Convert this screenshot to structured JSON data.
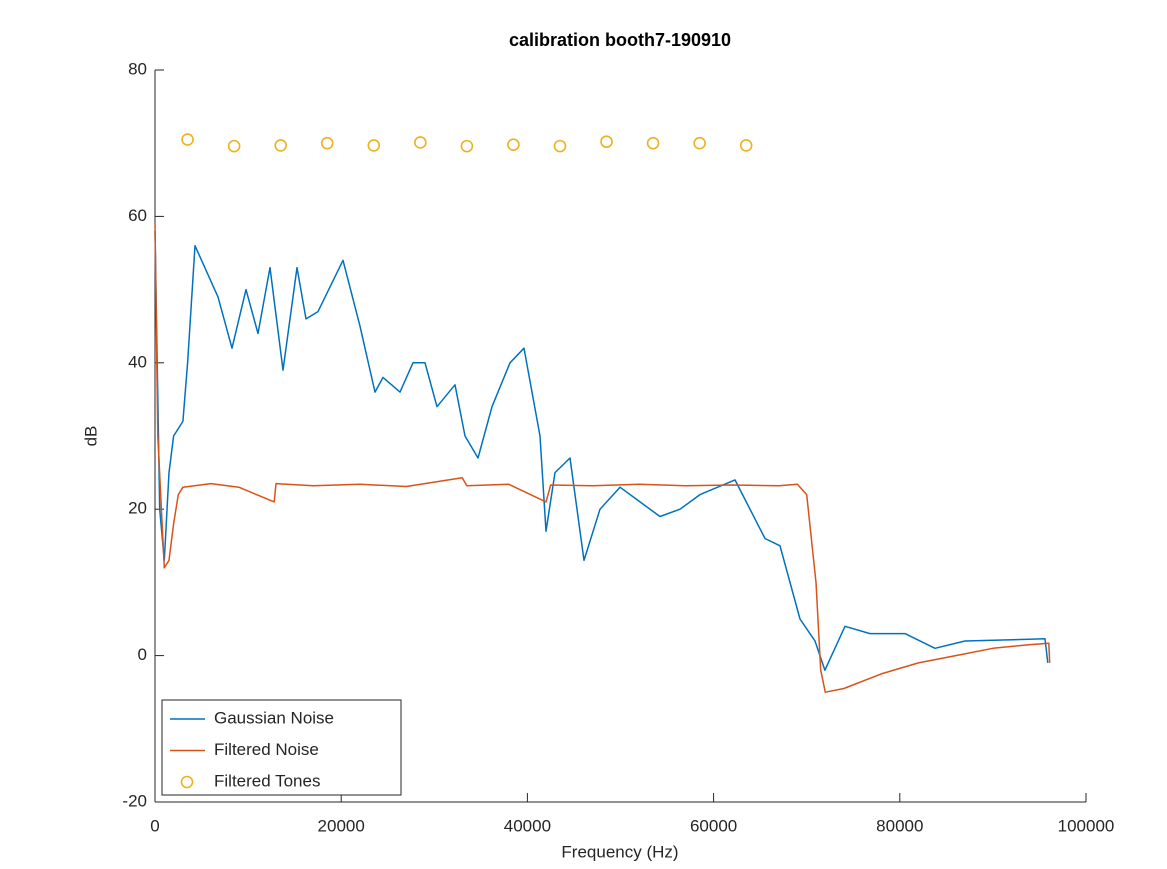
{
  "chart_data": {
    "type": "line",
    "title": "calibration booth7-190910",
    "x_label": "Frequency (Hz)",
    "y_label": "dB",
    "xlim": [
      0,
      100000
    ],
    "xticks": [
      0,
      20000,
      40000,
      60000,
      80000,
      100000
    ],
    "ylim": [
      -20,
      80
    ],
    "yticks": [
      -20,
      0,
      20,
      40,
      60,
      80
    ],
    "legend": "lower left",
    "grid": false,
    "series": [
      {
        "name": "Gaussian Noise",
        "color": "#0072bd",
        "style": "line",
        "x": [
          0,
          500,
          1000,
          1500,
          2000,
          3000,
          3500,
          4300,
          6770,
          8270,
          9770,
          11060,
          12350,
          13750,
          15250,
          16220,
          17510,
          20190,
          22020,
          23630,
          24490,
          26320,
          27710,
          29000,
          30290,
          32220,
          33300,
          34690,
          36200,
          38130,
          39630,
          41350,
          42000,
          42960,
          44580,
          46080,
          47800,
          49950,
          52090,
          54240,
          56390,
          58540,
          62300,
          63910,
          65520,
          67130,
          69280,
          70890,
          71960,
          74110,
          76800,
          80560,
          83780,
          87000,
          95600,
          95900
        ],
        "values": [
          58,
          20,
          13,
          25,
          30,
          32,
          40,
          56,
          49,
          42,
          50,
          44,
          53,
          39,
          53,
          46,
          47,
          54,
          45,
          36,
          38,
          36,
          40,
          40,
          34,
          37,
          30,
          27,
          34,
          40,
          42,
          30,
          17,
          25,
          27,
          13,
          20,
          23,
          21,
          19,
          20,
          22,
          24,
          20,
          16,
          15,
          5,
          2,
          -2,
          4,
          3,
          3,
          1,
          2,
          2.3,
          -1
        ]
      },
      {
        "name": "Filtered Noise",
        "color": "#d95319",
        "style": "line",
        "x": [
          0,
          300,
          1000,
          1500,
          2000,
          2500,
          3000,
          6000,
          9000,
          12800,
          13000,
          17000,
          22000,
          27000,
          33000,
          33500,
          38000,
          42000,
          42500,
          47000,
          52000,
          57000,
          62000,
          67000,
          69000,
          70000,
          71000,
          71500,
          72000,
          74000,
          78000,
          82000,
          86000,
          90000,
          94000,
          96000,
          96100
        ],
        "values": [
          59,
          30,
          12,
          13,
          18,
          22,
          23,
          23.5,
          23,
          21,
          23.5,
          23.2,
          23.4,
          23.1,
          24.3,
          23.2,
          23.4,
          21,
          23.3,
          23.2,
          23.4,
          23.2,
          23.3,
          23.2,
          23.4,
          22,
          10,
          -2,
          -5,
          -4.5,
          -2.5,
          -1,
          0,
          1,
          1.5,
          1.7,
          -1
        ]
      },
      {
        "name": "Filtered Tones",
        "color": "#edb120",
        "style": "markers",
        "x": [
          3500,
          8500,
          13500,
          18500,
          23500,
          28500,
          33500,
          38500,
          43500,
          48500,
          53500,
          58500,
          63500
        ],
        "values": [
          70.5,
          69.6,
          69.7,
          70,
          69.7,
          70.1,
          69.6,
          69.8,
          69.6,
          70.2,
          70,
          70,
          69.7
        ]
      }
    ]
  }
}
